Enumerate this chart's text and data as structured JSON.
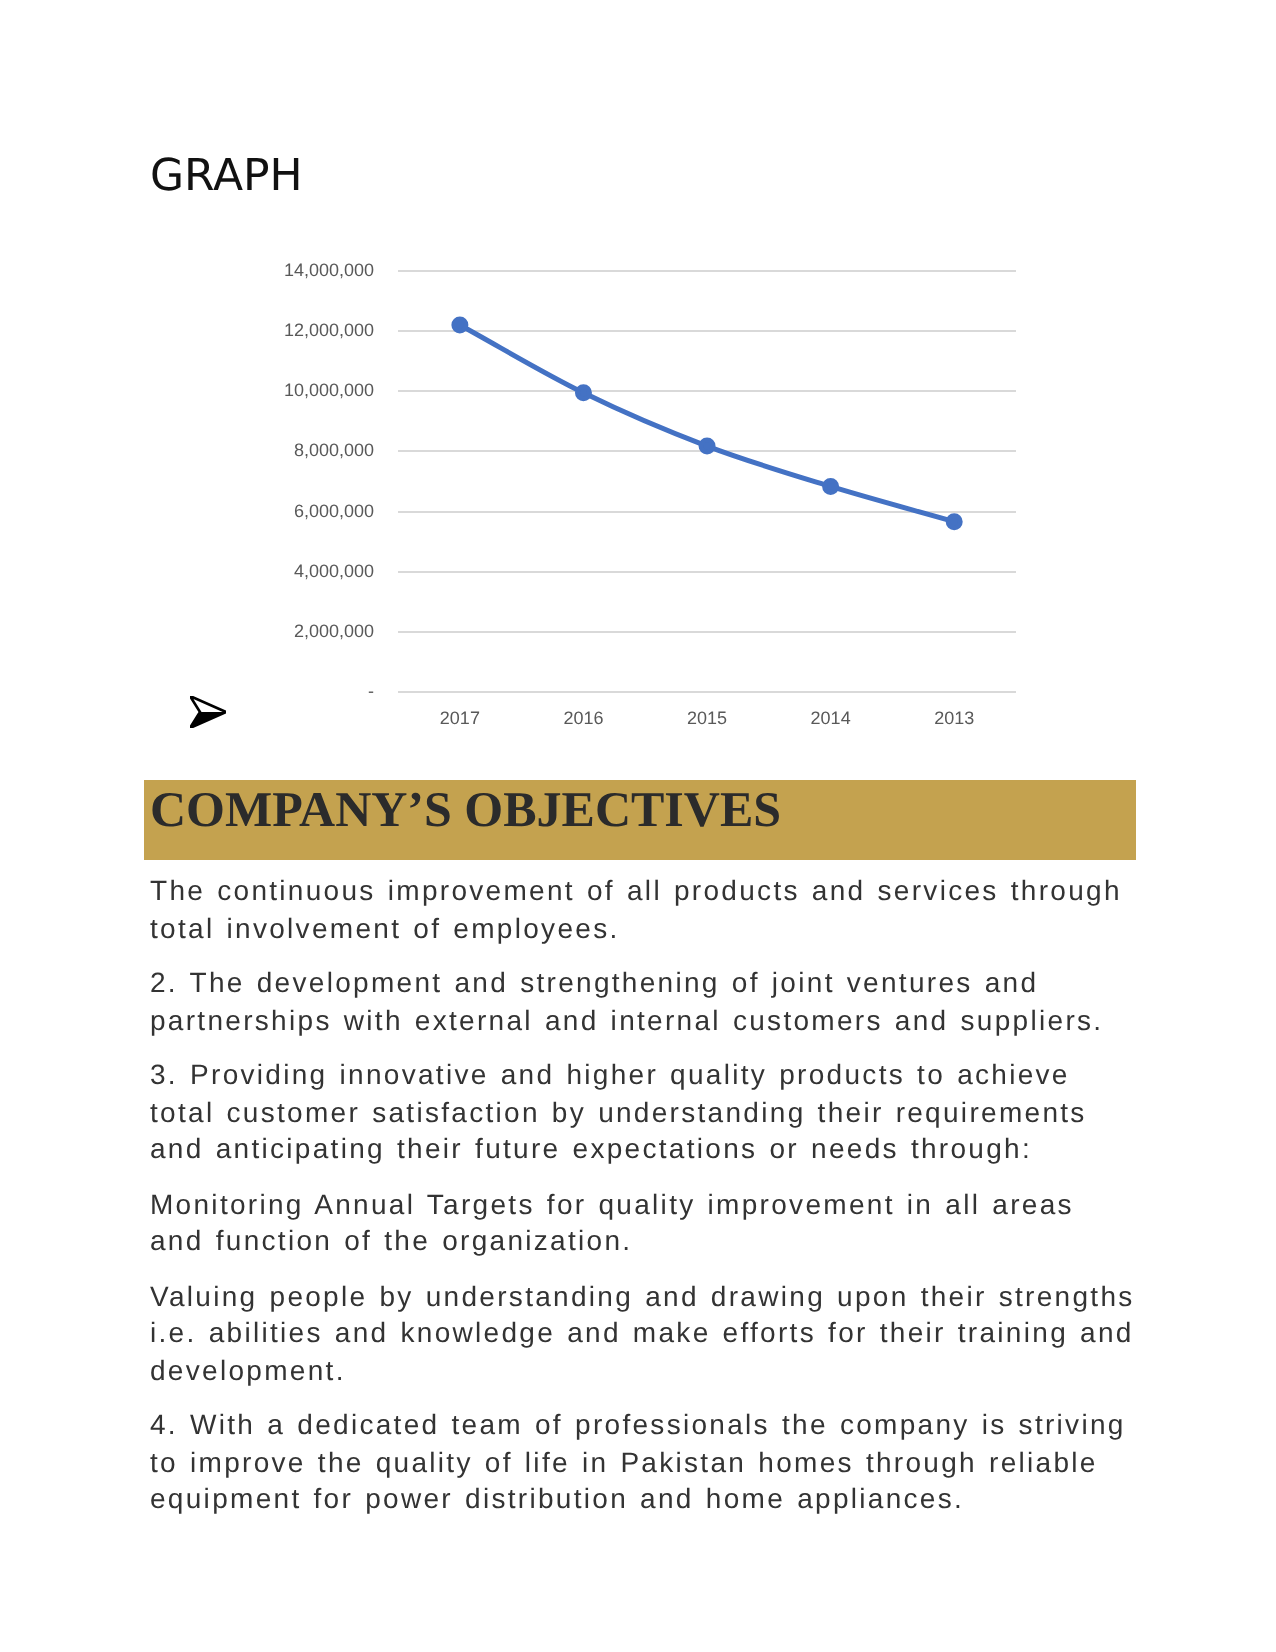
{
  "chart_data": {
    "type": "line",
    "title": "GRAPH",
    "categories": [
      "2017",
      "2016",
      "2015",
      "2014",
      "2013"
    ],
    "series": [
      {
        "color": "#4472c4",
        "values": [
          12200000,
          9950000,
          8180000,
          6840000,
          5670000
        ]
      }
    ],
    "ylim": [
      0,
      14000000
    ],
    "yticks": [
      {
        "value": 0,
        "label": "-"
      },
      {
        "value": 2000000,
        "label": "2,000,000"
      },
      {
        "value": 4000000,
        "label": "4,000,000"
      },
      {
        "value": 6000000,
        "label": "6,000,000"
      },
      {
        "value": 8000000,
        "label": "8,000,000"
      },
      {
        "value": 10000000,
        "label": "10,000,000"
      },
      {
        "value": 12000000,
        "label": "12,000,000"
      },
      {
        "value": 14000000,
        "label": "14,000,000"
      }
    ],
    "grid": "y",
    "legend": false,
    "marker": "circle",
    "line_style": "solid",
    "annotations": [
      "COMPANY’S OBJECTIVES",
      "The continuous improvement of all products and services through total involvement of employees.",
      "2.  The development and strengthening of joint ventures and partnerships with external and internal customers and suppliers.",
      "3.  Providing innovative and higher quality products to achieve total customer satisfaction by understanding their requirements and anticipating their future expectations or needs through:",
      "Monitoring Annual Targets for quality improvement in all areas and function of the organization.",
      "Valuing people by understanding and drawing upon their strengths i.e. abilities and knowledge and make efforts for their training and development.",
      "4.  With a dedicated team of professionals the company is striving to improve the quality of life in Pakistan homes through reliable equipment for power distribution and home appliances."
    ]
  }
}
